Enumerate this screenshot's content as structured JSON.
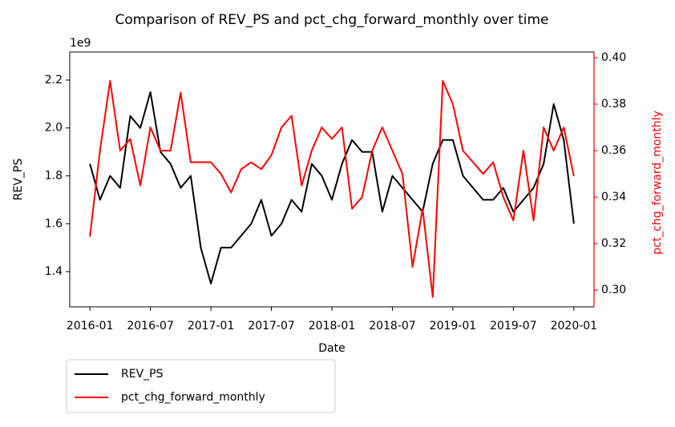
{
  "chart_data": {
    "type": "line",
    "title": "Comparison of REV_PS and pct_chg_forward_monthly over time",
    "x_label": "Date",
    "y_label": "REV_PS",
    "y2_label": "pct_chg_forward_monthly",
    "y_offset_label": "1e9",
    "x": [
      "2016-01",
      "2016-02",
      "2016-03",
      "2016-04",
      "2016-05",
      "2016-06",
      "2016-07",
      "2016-08",
      "2016-09",
      "2016-10",
      "2016-11",
      "2016-12",
      "2017-01",
      "2017-02",
      "2017-03",
      "2017-04",
      "2017-05",
      "2017-06",
      "2017-07",
      "2017-08",
      "2017-09",
      "2017-10",
      "2017-11",
      "2017-12",
      "2018-01",
      "2018-02",
      "2018-03",
      "2018-04",
      "2018-05",
      "2018-06",
      "2018-07",
      "2018-08",
      "2018-09",
      "2018-10",
      "2018-11",
      "2018-12",
      "2019-01",
      "2019-02",
      "2019-03",
      "2019-04",
      "2019-05",
      "2019-06",
      "2019-07",
      "2019-08",
      "2019-09",
      "2019-10",
      "2019-11",
      "2019-12",
      "2020-01"
    ],
    "xlim": [
      "2015-11",
      "2020-03"
    ],
    "xticks": [
      "2016-01",
      "2016-07",
      "2017-01",
      "2017-07",
      "2018-01",
      "2018-07",
      "2019-01",
      "2019-07",
      "2020-01"
    ],
    "ylim": [
      1253000000,
      2317000000
    ],
    "yticks": [
      {
        "value": 1400000000,
        "label": "1.4"
      },
      {
        "value": 1600000000,
        "label": "1.6"
      },
      {
        "value": 1800000000,
        "label": "1.8"
      },
      {
        "value": 2000000000,
        "label": "2.0"
      },
      {
        "value": 2200000000,
        "label": "2.2"
      }
    ],
    "y2lim": [
      0.2928,
      0.4024
    ],
    "y2ticks": [
      {
        "value": 0.3,
        "label": "0.30"
      },
      0.32,
      0.34,
      0.36,
      0.38,
      {
        "value": 0.4,
        "label": "0.40"
      }
    ],
    "y2_color": "#ff0000",
    "legend": "below",
    "series": [
      {
        "name": "REV_PS",
        "color": "#000000",
        "axis": "y",
        "values": [
          1850000000,
          1700000000,
          1800000000,
          1750000000,
          2050000000,
          2000000000,
          2150000000,
          1900000000,
          1850000000,
          1750000000,
          1800000000,
          1500000000,
          1350000000,
          1500000000,
          1500000000,
          1550000000,
          1600000000,
          1700000000,
          1550000000,
          1600000000,
          1700000000,
          1650000000,
          1850000000,
          1800000000,
          1700000000,
          1850000000,
          1950000000,
          1900000000,
          1900000000,
          1650000000,
          1800000000,
          1750000000,
          1700000000,
          1650000000,
          1850000000,
          1950000000,
          1950000000,
          1800000000,
          1750000000,
          1700000000,
          1700000000,
          1750000000,
          1650000000,
          1700000000,
          1750000000,
          1850000000,
          2100000000,
          1950000000,
          1600000000
        ]
      },
      {
        "name": "pct_chg_forward_monthly",
        "color": "#ff0000",
        "axis": "y2",
        "values": [
          0.323,
          0.36,
          0.39,
          0.36,
          0.365,
          0.345,
          0.37,
          0.36,
          0.36,
          0.385,
          0.355,
          0.355,
          0.355,
          0.35,
          0.342,
          0.352,
          0.355,
          0.352,
          0.358,
          0.37,
          0.375,
          0.345,
          0.36,
          0.37,
          0.365,
          0.37,
          0.335,
          0.34,
          0.36,
          0.37,
          0.36,
          0.35,
          0.31,
          0.335,
          0.297,
          0.39,
          0.38,
          0.36,
          0.355,
          0.35,
          0.355,
          0.34,
          0.33,
          0.36,
          0.33,
          0.37,
          0.36,
          0.37,
          0.349
        ]
      }
    ]
  }
}
